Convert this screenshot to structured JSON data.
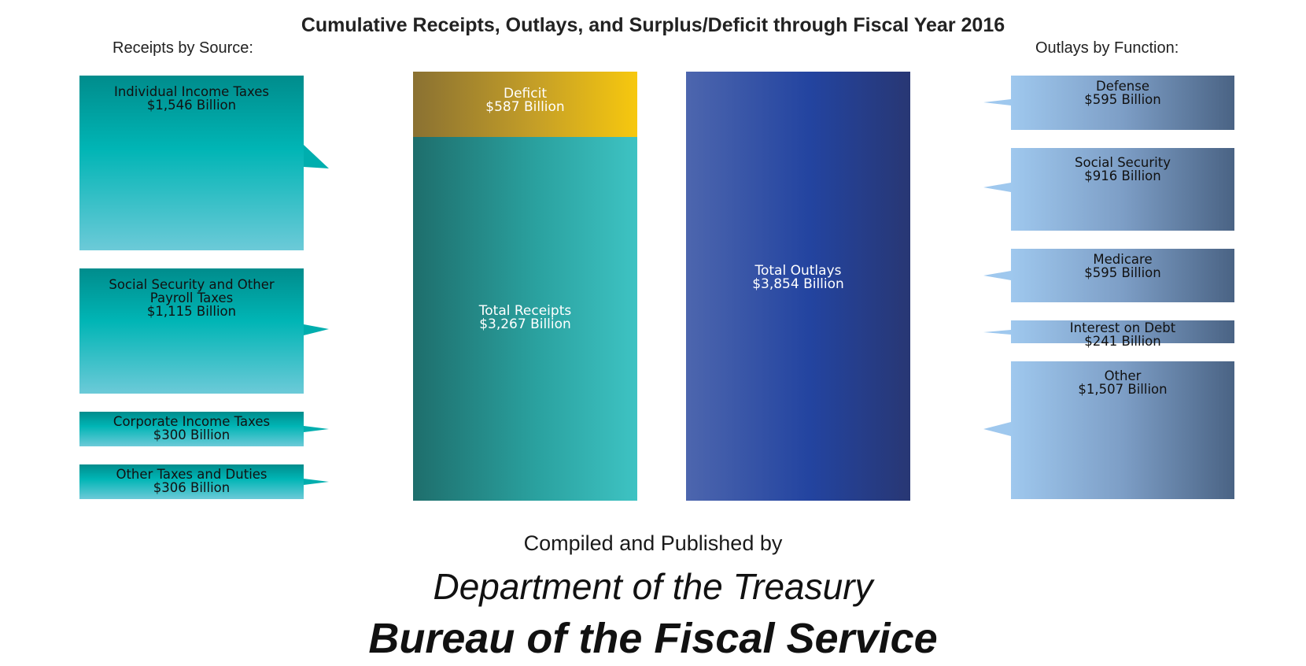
{
  "title": "Cumulative Receipts, Outlays, and Surplus/Deficit through Fiscal Year 2016",
  "receipts_heading": "Receipts by Source:",
  "outlays_heading": "Outlays by Function:",
  "chart_data": {
    "type": "bar",
    "title": "Cumulative Receipts, Outlays, and Surplus/Deficit through Fiscal Year 2016",
    "unit": "Billion",
    "receipts_by_source": [
      {
        "label": "Individual Income Taxes",
        "amount": "$1,546 Billion",
        "value": 1546
      },
      {
        "label": "Social Security and Other\nPayroll Taxes",
        "amount": "$1,115 Billion",
        "value": 1115
      },
      {
        "label": "Corporate Income Taxes",
        "amount": "$300 Billion",
        "value": 300
      },
      {
        "label": "Other Taxes and Duties",
        "amount": "$306 Billion",
        "value": 306
      }
    ],
    "totals": {
      "deficit": {
        "label": "Deficit",
        "amount": "$587 Billion",
        "value": 587
      },
      "receipts": {
        "label": "Total Receipts",
        "amount": "$3,267 Billion",
        "value": 3267
      },
      "outlays": {
        "label": "Total Outlays",
        "amount": "$3,854 Billion",
        "value": 3854
      }
    },
    "outlays_by_function": [
      {
        "label": "Defense",
        "amount": "$595 Billion",
        "value": 595
      },
      {
        "label": "Social Security",
        "amount": "$916 Billion",
        "value": 916
      },
      {
        "label": "Medicare",
        "amount": "$595 Billion",
        "value": 595
      },
      {
        "label": "Interest on Debt",
        "amount": "$241 Billion",
        "value": 241
      },
      {
        "label": "Other",
        "amount": "$1,507 Billion",
        "value": 1507
      }
    ],
    "colors": {
      "receipts_boxes": "#00b5b5",
      "deficit": "#f7c80e",
      "total_receipts": "#2aa19f",
      "total_outlays": "#2344a0",
      "outlay_boxes": "#7d9ec6"
    }
  },
  "footer": {
    "compiled": "Compiled and Published by",
    "department": "Department of the Treasury",
    "bureau": "Bureau of the Fiscal Service"
  }
}
